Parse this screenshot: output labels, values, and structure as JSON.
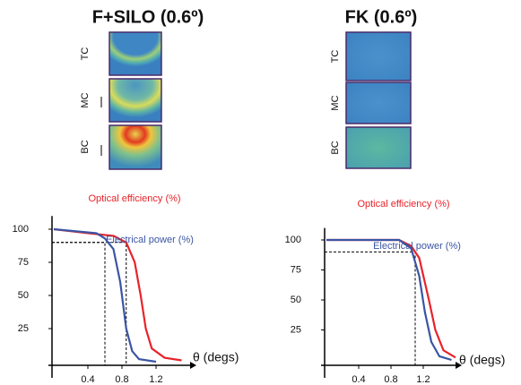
{
  "chart_data": [
    {
      "type": "line",
      "title": "F+SILO (0.6º)",
      "panel_labels": [
        "TC",
        "MC",
        "BC"
      ],
      "xlabel": "θ (degs)",
      "xlim": [
        0,
        1.6
      ],
      "ylim": [
        0,
        110
      ],
      "xticks": [
        0.4,
        0.8,
        1.2
      ],
      "yticks": [
        25,
        50,
        75,
        100
      ],
      "series": [
        {
          "name": "Optical efficiency (%)",
          "color": "#e8232a",
          "x": [
            0,
            0.4,
            0.7,
            0.85,
            0.95,
            1.02,
            1.08,
            1.15,
            1.3,
            1.5
          ],
          "values": [
            100,
            97,
            95,
            90,
            75,
            50,
            25,
            10,
            3,
            1
          ]
        },
        {
          "name": "Electrical power (%)",
          "color": "#3a55a4",
          "x": [
            0,
            0.5,
            0.6,
            0.7,
            0.78,
            0.85,
            0.92,
            1.0,
            1.2
          ],
          "values": [
            100,
            97,
            93,
            85,
            60,
            25,
            8,
            2,
            0
          ]
        }
      ],
      "markers": [
        {
          "x": 0.6,
          "y": 90
        },
        {
          "x": 0.85,
          "y": 90
        }
      ]
    },
    {
      "type": "line",
      "title": "FK (0.6º)",
      "panel_labels": [
        "TC",
        "MC",
        "BC"
      ],
      "xlabel": "θ (degs)",
      "xlim": [
        0,
        1.6
      ],
      "ylim": [
        0,
        110
      ],
      "xticks": [
        0.4,
        0.8,
        1.2
      ],
      "yticks": [
        25,
        50,
        75,
        100
      ],
      "series": [
        {
          "name": "Optical efficiency (%)",
          "color": "#e8232a",
          "x": [
            0,
            0.9,
            1.05,
            1.15,
            1.27,
            1.35,
            1.45,
            1.6
          ],
          "values": [
            100,
            100,
            95,
            85,
            50,
            25,
            8,
            2
          ]
        },
        {
          "name": "Electrical power (%)",
          "color": "#3a55a4",
          "x": [
            0,
            0.9,
            1.05,
            1.15,
            1.22,
            1.3,
            1.4,
            1.55
          ],
          "values": [
            100,
            100,
            93,
            70,
            40,
            15,
            3,
            0
          ]
        }
      ],
      "markers": [
        {
          "x": 1.1,
          "y": 90
        }
      ]
    }
  ]
}
